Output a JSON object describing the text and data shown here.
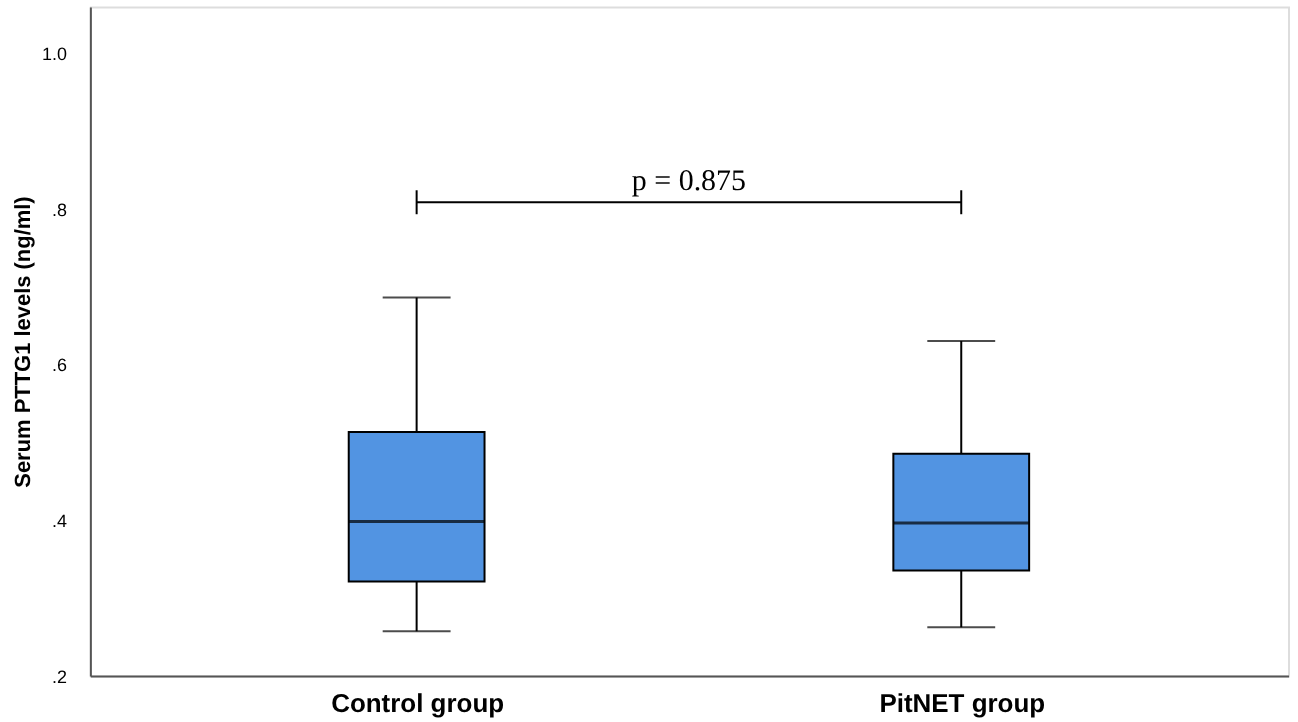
{
  "chart_data": {
    "type": "box",
    "ylabel": "Serum PTTG1 levels (ng/ml)",
    "categories": [
      "Control group",
      "PitNET group"
    ],
    "boxes": [
      {
        "low": 0.257,
        "q1": 0.321,
        "median": 0.398,
        "q3": 0.513,
        "high": 0.686
      },
      {
        "low": 0.262,
        "q1": 0.335,
        "median": 0.396,
        "q3": 0.485,
        "high": 0.63
      }
    ],
    "color": "#5294e2",
    "ylim": [
      0.2,
      1.06
    ],
    "yticks": [
      {
        "value": 0.2,
        "label": ".2"
      },
      {
        "value": 0.4,
        "label": ".4"
      },
      {
        "value": 0.6,
        "label": ".6"
      },
      {
        "value": 0.8,
        "label": ".8"
      },
      {
        "value": 1.0,
        "label": "1.0"
      }
    ],
    "grid": false,
    "annotations": [
      "p = 0.875"
    ]
  }
}
